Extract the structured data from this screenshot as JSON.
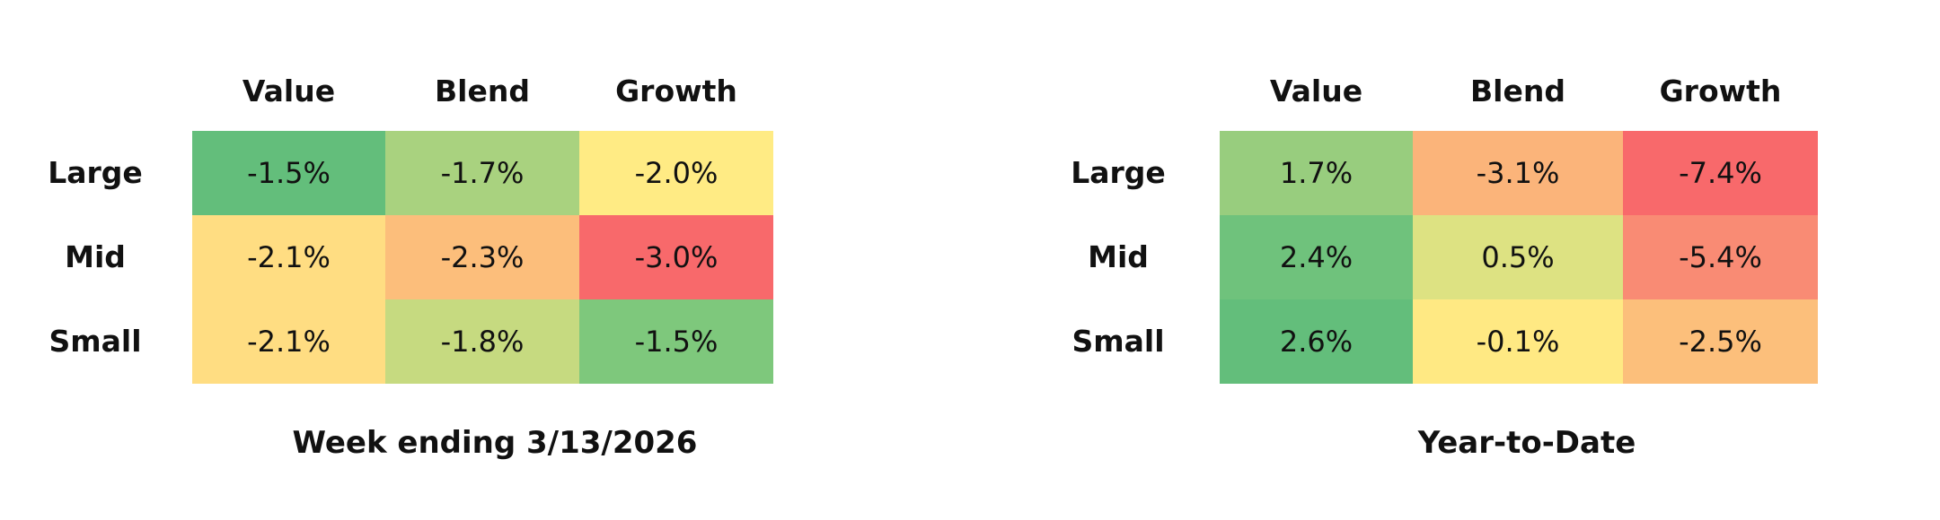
{
  "chart_data": [
    {
      "type": "heatmap",
      "title": "Week ending 3/13/2026",
      "columns": [
        "Value",
        "Blend",
        "Growth"
      ],
      "rows": [
        "Large",
        "Mid",
        "Small"
      ],
      "values": [
        [
          -1.5,
          -1.7,
          -2.0
        ],
        [
          -2.1,
          -2.3,
          -3.0
        ],
        [
          -2.1,
          -1.8,
          -1.5
        ]
      ],
      "labels": [
        [
          "-1.5%",
          "-1.7%",
          "-2.0%"
        ],
        [
          "-2.1%",
          "-2.3%",
          "-3.0%"
        ],
        [
          "-2.1%",
          "-1.8%",
          "-1.5%"
        ]
      ],
      "colors": [
        [
          "#63be7b",
          "#a9d27f",
          "#ffeb84"
        ],
        [
          "#ffdd82",
          "#fcbe7b",
          "#f8696b"
        ],
        [
          "#ffdd82",
          "#c6da80",
          "#7ec87c"
        ]
      ]
    },
    {
      "type": "heatmap",
      "title": "Year-to-Date",
      "columns": [
        "Value",
        "Blend",
        "Growth"
      ],
      "rows": [
        "Large",
        "Mid",
        "Small"
      ],
      "values": [
        [
          1.7,
          -3.1,
          -7.4
        ],
        [
          2.4,
          0.5,
          -5.4
        ],
        [
          2.6,
          -0.1,
          -2.5
        ]
      ],
      "labels": [
        [
          "1.7%",
          "-3.1%",
          "-7.4%"
        ],
        [
          "2.4%",
          "0.5%",
          "-5.4%"
        ],
        [
          "2.6%",
          "-0.1%",
          "-2.5%"
        ]
      ],
      "colors": [
        [
          "#98cd7e",
          "#fbb47a",
          "#f8696b"
        ],
        [
          "#6fc27c",
          "#dde282",
          "#f98b74"
        ],
        [
          "#63be7b",
          "#ffe983",
          "#fcbf7b"
        ]
      ]
    }
  ]
}
